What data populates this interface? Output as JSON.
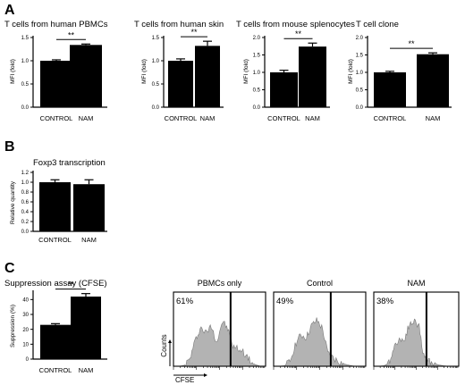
{
  "panels": [
    {
      "letter": "A"
    },
    {
      "letter": "B"
    },
    {
      "letter": "C"
    }
  ],
  "chart_data": [
    {
      "panel": "A",
      "type": "bar",
      "title": "T cells from human PBMCs",
      "ylabel": "MFI (fold)",
      "categories": [
        "CONTROL",
        "NAM"
      ],
      "values": [
        1.0,
        1.34
      ],
      "errors": [
        0.02,
        0.02
      ],
      "ylim": [
        0,
        1.5
      ],
      "yticks": [
        "0.0",
        "0.5",
        "1.0",
        "1.5"
      ],
      "significance": "**"
    },
    {
      "panel": "A",
      "type": "bar",
      "title": "T cells from human skin",
      "ylabel": "MFI (fold)",
      "categories": [
        "CONTROL",
        "NAM"
      ],
      "values": [
        1.0,
        1.32
      ],
      "errors": [
        0.04,
        0.1
      ],
      "ylim": [
        0,
        1.5
      ],
      "yticks": [
        "0.0",
        "0.5",
        "1.0",
        "1.5"
      ],
      "significance": "**"
    },
    {
      "panel": "A",
      "type": "bar",
      "title": "T cells from mouse splenocytes",
      "ylabel": "MFI (fold)",
      "categories": [
        "CONTROL",
        "NAM"
      ],
      "values": [
        1.0,
        1.74
      ],
      "errors": [
        0.06,
        0.1
      ],
      "ylim": [
        0,
        2.0
      ],
      "yticks": [
        "0.0",
        "0.5",
        "1.0",
        "1.5",
        "2.0"
      ],
      "significance": "**"
    },
    {
      "panel": "A",
      "type": "bar",
      "title": "T cell clone",
      "ylabel": "MFI (fold)",
      "categories": [
        "CONTROL",
        "NAM"
      ],
      "values": [
        1.0,
        1.52
      ],
      "errors": [
        0.03,
        0.04
      ],
      "ylim": [
        0,
        2.0
      ],
      "yticks": [
        "0.0",
        "0.5",
        "1.0",
        "1.5",
        "2.0"
      ],
      "significance": "**"
    },
    {
      "panel": "B",
      "type": "bar",
      "title": "Foxp3 transcription",
      "ylabel": "Relative quantity",
      "categories": [
        "CONTROL",
        "NAM"
      ],
      "values": [
        1.0,
        0.96
      ],
      "errors": [
        0.05,
        0.09
      ],
      "ylim": [
        0,
        1.2
      ],
      "yticks": [
        "0.0",
        "0.2",
        "0.4",
        "0.6",
        "0.8",
        "1.0",
        "1.2"
      ],
      "significance": ""
    },
    {
      "panel": "C",
      "type": "bar",
      "title": "Suppression assay (CFSE)",
      "ylabel": "Suppression (%)",
      "categories": [
        "CONTROL",
        "NAM"
      ],
      "values": [
        23,
        42
      ],
      "errors": [
        0.8,
        2.0
      ],
      "ylim": [
        0,
        45
      ],
      "yticks": [
        "0",
        "10",
        "20",
        "30",
        "40"
      ],
      "significance": "**"
    },
    {
      "panel": "C",
      "type": "area",
      "title": "PBMCs only",
      "percent_label": "61%",
      "ylabel": "Counts",
      "xlabel": "CFSE",
      "gate_position": 0.62,
      "profile": [
        0.0,
        0.0,
        0.02,
        0.15,
        0.55,
        0.85,
        0.72,
        0.88,
        0.52,
        0.98,
        0.82,
        0.42,
        0.38,
        0.3,
        0.14,
        0.04,
        0.0,
        0.0
      ]
    },
    {
      "panel": "C",
      "type": "area",
      "title": "Control",
      "percent_label": "49%",
      "ylabel": "",
      "xlabel": "",
      "gate_position": 0.62,
      "profile": [
        0.0,
        0.0,
        0.01,
        0.1,
        0.48,
        0.68,
        0.62,
        0.88,
        1.0,
        0.82,
        0.28,
        0.18,
        0.1,
        0.05,
        0.02,
        0.0,
        0.0,
        0.0
      ]
    },
    {
      "panel": "C",
      "type": "area",
      "title": "NAM",
      "percent_label": "38%",
      "ylabel": "",
      "xlabel": "",
      "gate_position": 0.62,
      "profile": [
        0.0,
        0.0,
        0.01,
        0.06,
        0.4,
        0.6,
        0.55,
        0.88,
        0.98,
        0.9,
        0.22,
        0.12,
        0.06,
        0.03,
        0.01,
        0.0,
        0.0,
        0.0
      ]
    }
  ]
}
